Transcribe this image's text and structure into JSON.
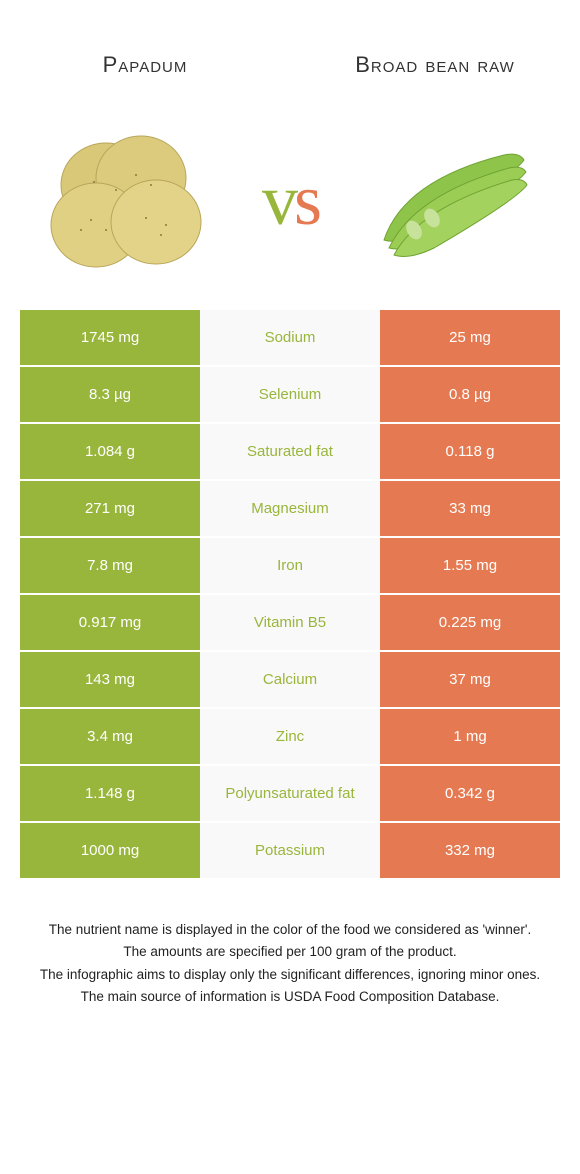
{
  "colors": {
    "left": "#99b63c",
    "right": "#e57a52",
    "mid_bg": "#f9f9f9"
  },
  "foods": {
    "left": {
      "name": "Papadum"
    },
    "right": {
      "name": "Broad bean raw"
    }
  },
  "vs": {
    "v": "v",
    "s": "s"
  },
  "rows": [
    {
      "label": "Sodium",
      "left": "1745 mg",
      "right": "25 mg",
      "winner": "left"
    },
    {
      "label": "Selenium",
      "left": "8.3 µg",
      "right": "0.8 µg",
      "winner": "left"
    },
    {
      "label": "Saturated fat",
      "left": "1.084 g",
      "right": "0.118 g",
      "winner": "left"
    },
    {
      "label": "Magnesium",
      "left": "271 mg",
      "right": "33 mg",
      "winner": "left"
    },
    {
      "label": "Iron",
      "left": "7.8 mg",
      "right": "1.55 mg",
      "winner": "left"
    },
    {
      "label": "Vitamin B5",
      "left": "0.917 mg",
      "right": "0.225 mg",
      "winner": "left"
    },
    {
      "label": "Calcium",
      "left": "143 mg",
      "right": "37 mg",
      "winner": "left"
    },
    {
      "label": "Zinc",
      "left": "3.4 mg",
      "right": "1 mg",
      "winner": "left"
    },
    {
      "label": "Polyunsaturated fat",
      "left": "1.148 g",
      "right": "0.342 g",
      "winner": "left"
    },
    {
      "label": "Potassium",
      "left": "1000 mg",
      "right": "332 mg",
      "winner": "left"
    }
  ],
  "footer": {
    "l1": "The nutrient name is displayed in the color of the food we considered as 'winner'.",
    "l2": "The amounts are specified per 100 gram of the product.",
    "l3": "The infographic aims to display only the significant differences, ignoring minor ones.",
    "l4": "The main source of information is USDA Food Composition Database."
  }
}
